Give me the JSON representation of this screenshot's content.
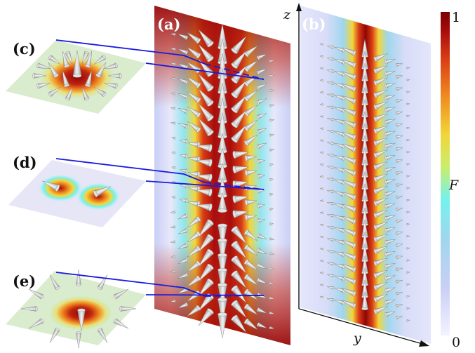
{
  "panels": {
    "a": "(a)",
    "b": "(b)",
    "c": "(c)",
    "d": "(d)",
    "e": "(e)"
  },
  "axes": {
    "z": "z",
    "y": "y"
  },
  "colorbar": {
    "label": "F",
    "max": "1",
    "min": "0",
    "colors": [
      "#f4f2ff",
      "#c9cff5",
      "#9fd6ee",
      "#74f2ef",
      "#c8ee6c",
      "#f2d63a",
      "#f08a20",
      "#d83a14",
      "#a80d0d",
      "#7c0000"
    ]
  },
  "colors": {
    "connector": "#1a1adf",
    "cone": "#e2e2e2"
  }
}
